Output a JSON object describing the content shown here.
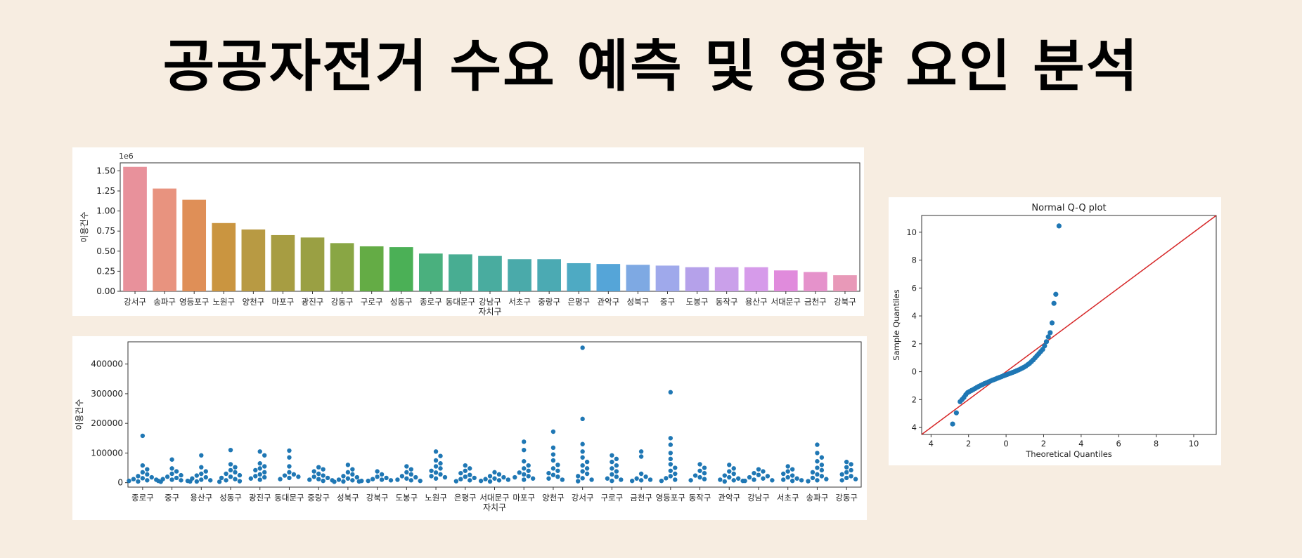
{
  "slide": {
    "title": "공공자전거 수요 예측 및 영향 요인 분석"
  },
  "chart_data": [
    {
      "type": "bar",
      "scale_label": "1e6",
      "xlabel": "자치구",
      "ylabel": "이용건수",
      "ylim": [
        0,
        1.6
      ],
      "yticks": [
        "0.00",
        "0.25",
        "0.50",
        "0.75",
        "1.00",
        "1.25",
        "1.50"
      ],
      "categories": [
        "강서구",
        "송파구",
        "영등포구",
        "노원구",
        "양천구",
        "마포구",
        "광진구",
        "강동구",
        "구로구",
        "성동구",
        "종로구",
        "동대문구",
        "강남구",
        "서초구",
        "중랑구",
        "은평구",
        "관악구",
        "성북구",
        "중구",
        "도봉구",
        "동작구",
        "용산구",
        "서대문구",
        "금천구",
        "강북구"
      ],
      "values": [
        1.55,
        1.28,
        1.14,
        0.85,
        0.77,
        0.7,
        0.67,
        0.6,
        0.56,
        0.55,
        0.47,
        0.46,
        0.44,
        0.4,
        0.4,
        0.35,
        0.34,
        0.33,
        0.32,
        0.3,
        0.3,
        0.3,
        0.26,
        0.24,
        0.2
      ],
      "colors": [
        "#e8919b",
        "#e8937f",
        "#df8f57",
        "#ca9540",
        "#b89a43",
        "#a79d42",
        "#9aa043",
        "#89a644",
        "#64ac45",
        "#4bb056",
        "#4ab07e",
        "#48ad92",
        "#49ac9f",
        "#4aaaaa",
        "#4baab3",
        "#4eaac3",
        "#55a5d8",
        "#7ea9e3",
        "#9fa9eb",
        "#b5a1ea",
        "#caa0ea",
        "#d69bea",
        "#e08bdc",
        "#e592cb",
        "#e899b8"
      ]
    },
    {
      "type": "scatter",
      "subtype": "swarm",
      "xlabel": "자치구",
      "ylabel": "이용건수",
      "ylim": [
        -15000,
        475000
      ],
      "yticks": [
        "0",
        "100000",
        "200000",
        "300000",
        "400000"
      ],
      "color": "#1f77b4",
      "categories": [
        "종로구",
        "중구",
        "용산구",
        "성동구",
        "광진구",
        "동대문구",
        "중랑구",
        "성북구",
        "강북구",
        "도봉구",
        "노원구",
        "은평구",
        "서대문구",
        "마포구",
        "양천구",
        "강서구",
        "구로구",
        "금천구",
        "영등포구",
        "동작구",
        "관악구",
        "강남구",
        "서초구",
        "송파구",
        "강동구"
      ],
      "series": [
        {
          "category": "종로구",
          "values": [
            158000,
            58000,
            45000,
            35000,
            28000,
            22000,
            18000,
            15000,
            12000,
            10000,
            8000,
            6000,
            4000,
            3000
          ]
        },
        {
          "category": "중구",
          "values": [
            78000,
            48000,
            38000,
            30000,
            25000,
            20000,
            16000,
            12000,
            10000,
            8000,
            6000,
            4000
          ]
        },
        {
          "category": "용산구",
          "values": [
            92000,
            52000,
            38000,
            30000,
            24000,
            18000,
            14000,
            10000,
            8000,
            6000,
            4000,
            3000
          ]
        },
        {
          "category": "성동구",
          "values": [
            110000,
            62000,
            52000,
            42000,
            35000,
            30000,
            25000,
            20000,
            16000,
            12000,
            8000,
            5000
          ]
        },
        {
          "category": "광진구",
          "values": [
            105000,
            92000,
            65000,
            55000,
            48000,
            42000,
            35000,
            28000,
            22000,
            18000,
            14000,
            10000
          ]
        },
        {
          "category": "동대문구",
          "values": [
            108000,
            85000,
            55000,
            35000,
            28000,
            24000,
            20000,
            16000,
            12000
          ]
        },
        {
          "category": "중랑구",
          "values": [
            52000,
            45000,
            38000,
            30000,
            24000,
            20000,
            16000,
            12000,
            10000,
            8000,
            6000
          ]
        },
        {
          "category": "성북구",
          "values": [
            60000,
            45000,
            35000,
            28000,
            22000,
            18000,
            14000,
            10000,
            8000,
            6000,
            4000,
            3000
          ]
        },
        {
          "category": "강북구",
          "values": [
            38000,
            28000,
            20000,
            16000,
            12000,
            10000,
            8000,
            6000,
            4000
          ]
        },
        {
          "category": "도봉구",
          "values": [
            55000,
            45000,
            35000,
            28000,
            22000,
            18000,
            14000,
            10000,
            8000,
            6000
          ]
        },
        {
          "category": "노원구",
          "values": [
            105000,
            90000,
            75000,
            65000,
            55000,
            48000,
            40000,
            34000,
            28000,
            22000,
            18000,
            14000
          ]
        },
        {
          "category": "은평구",
          "values": [
            58000,
            48000,
            40000,
            32000,
            26000,
            20000,
            16000,
            12000,
            8000,
            5000
          ]
        },
        {
          "category": "서대문구",
          "values": [
            35000,
            28000,
            22000,
            18000,
            14000,
            12000,
            10000,
            8000,
            6000,
            4000
          ]
        },
        {
          "category": "마포구",
          "values": [
            138000,
            110000,
            72000,
            58000,
            48000,
            40000,
            34000,
            28000,
            22000,
            18000,
            14000,
            10000
          ]
        },
        {
          "category": "양천구",
          "values": [
            172000,
            118000,
            95000,
            75000,
            60000,
            48000,
            40000,
            32000,
            26000,
            20000,
            14000,
            10000
          ]
        },
        {
          "category": "강서구",
          "values": [
            455000,
            215000,
            130000,
            105000,
            85000,
            70000,
            58000,
            48000,
            38000,
            30000,
            22000,
            15000,
            10000,
            5000
          ]
        },
        {
          "category": "구로구",
          "values": [
            92000,
            80000,
            70000,
            58000,
            48000,
            38000,
            28000,
            20000,
            14000,
            10000,
            6000
          ]
        },
        {
          "category": "금천구",
          "values": [
            105000,
            88000,
            30000,
            20000,
            14000,
            10000,
            8000,
            6000
          ]
        },
        {
          "category": "영등포구",
          "values": [
            305000,
            150000,
            128000,
            100000,
            80000,
            62000,
            50000,
            40000,
            30000,
            22000,
            15000,
            10000,
            6000
          ]
        },
        {
          "category": "동작구",
          "values": [
            62000,
            50000,
            40000,
            32000,
            24000,
            18000,
            12000,
            8000
          ]
        },
        {
          "category": "관악구",
          "values": [
            60000,
            48000,
            38000,
            30000,
            24000,
            18000,
            14000,
            10000,
            8000,
            6000,
            4000
          ]
        },
        {
          "category": "강남구",
          "values": [
            45000,
            38000,
            32000,
            26000,
            22000,
            18000,
            14000,
            10000,
            8000,
            6000
          ]
        },
        {
          "category": "서초구",
          "values": [
            55000,
            45000,
            38000,
            30000,
            24000,
            18000,
            14000,
            10000,
            8000,
            6000
          ]
        },
        {
          "category": "송파구",
          "values": [
            128000,
            100000,
            85000,
            72000,
            60000,
            50000,
            42000,
            35000,
            28000,
            22000,
            16000,
            12000,
            8000,
            5000
          ]
        },
        {
          "category": "강동구",
          "values": [
            70000,
            62000,
            52000,
            42000,
            35000,
            28000,
            22000,
            16000,
            12000,
            8000
          ]
        }
      ]
    },
    {
      "type": "scatter",
      "subtype": "qq",
      "title": "Normal Q-Q plot",
      "xlabel": "Theoretical Quantiles",
      "ylabel": "Sample Quantiles",
      "xlim": [
        -4.5,
        11.2
      ],
      "ylim": [
        -4.5,
        11.2
      ],
      "xticks": [
        {
          "v": -4,
          "t": "4"
        },
        {
          "v": -2,
          "t": "2"
        },
        {
          "v": 0,
          "t": "0"
        },
        {
          "v": 2,
          "t": "2"
        },
        {
          "v": 4,
          "t": "4"
        },
        {
          "v": 6,
          "t": "6"
        },
        {
          "v": 8,
          "t": "8"
        },
        {
          "v": 10,
          "t": "10"
        }
      ],
      "yticks": [
        {
          "v": -4,
          "t": "4"
        },
        {
          "v": -2,
          "t": "2"
        },
        {
          "v": 0,
          "t": "0"
        },
        {
          "v": 2,
          "t": "2"
        },
        {
          "v": 4,
          "t": "4"
        },
        {
          "v": 6,
          "t": "6"
        },
        {
          "v": 8,
          "t": "8"
        },
        {
          "v": 10,
          "t": "10"
        }
      ],
      "point_color": "#1f77b4",
      "line_color": "#d62728",
      "reference_line": [
        [
          -4.5,
          -4.5
        ],
        [
          11.2,
          11.2
        ]
      ],
      "points": [
        [
          -2.85,
          -3.75
        ],
        [
          -2.65,
          -2.95
        ],
        [
          -2.45,
          -2.15
        ],
        [
          -2.35,
          -2.0
        ],
        [
          -2.25,
          -1.85
        ],
        [
          -2.15,
          -1.65
        ],
        [
          -2.05,
          -1.5
        ],
        [
          -1.95,
          -1.42
        ],
        [
          -1.85,
          -1.35
        ],
        [
          -1.75,
          -1.28
        ],
        [
          -1.65,
          -1.2
        ],
        [
          -1.55,
          -1.12
        ],
        [
          -1.45,
          -1.05
        ],
        [
          -1.35,
          -0.98
        ],
        [
          -1.25,
          -0.92
        ],
        [
          -1.15,
          -0.85
        ],
        [
          -1.05,
          -0.8
        ],
        [
          -0.95,
          -0.74
        ],
        [
          -0.85,
          -0.68
        ],
        [
          -0.75,
          -0.62
        ],
        [
          -0.65,
          -0.57
        ],
        [
          -0.55,
          -0.52
        ],
        [
          -0.45,
          -0.46
        ],
        [
          -0.35,
          -0.41
        ],
        [
          -0.25,
          -0.36
        ],
        [
          -0.15,
          -0.3
        ],
        [
          -0.05,
          -0.25
        ],
        [
          0.05,
          -0.2
        ],
        [
          0.15,
          -0.15
        ],
        [
          0.25,
          -0.1
        ],
        [
          0.35,
          -0.05
        ],
        [
          0.45,
          0.0
        ],
        [
          0.55,
          0.06
        ],
        [
          0.65,
          0.12
        ],
        [
          0.75,
          0.18
        ],
        [
          0.85,
          0.25
        ],
        [
          0.95,
          0.32
        ],
        [
          1.05,
          0.4
        ],
        [
          1.15,
          0.5
        ],
        [
          1.25,
          0.6
        ],
        [
          1.35,
          0.72
        ],
        [
          1.45,
          0.85
        ],
        [
          1.55,
          1.0
        ],
        [
          1.65,
          1.15
        ],
        [
          1.75,
          1.3
        ],
        [
          1.85,
          1.45
        ],
        [
          1.95,
          1.6
        ],
        [
          2.05,
          1.85
        ],
        [
          2.15,
          2.15
        ],
        [
          2.25,
          2.5
        ],
        [
          2.35,
          2.8
        ],
        [
          2.45,
          3.5
        ],
        [
          2.55,
          4.9
        ],
        [
          2.65,
          5.55
        ],
        [
          2.82,
          10.45
        ]
      ]
    }
  ]
}
